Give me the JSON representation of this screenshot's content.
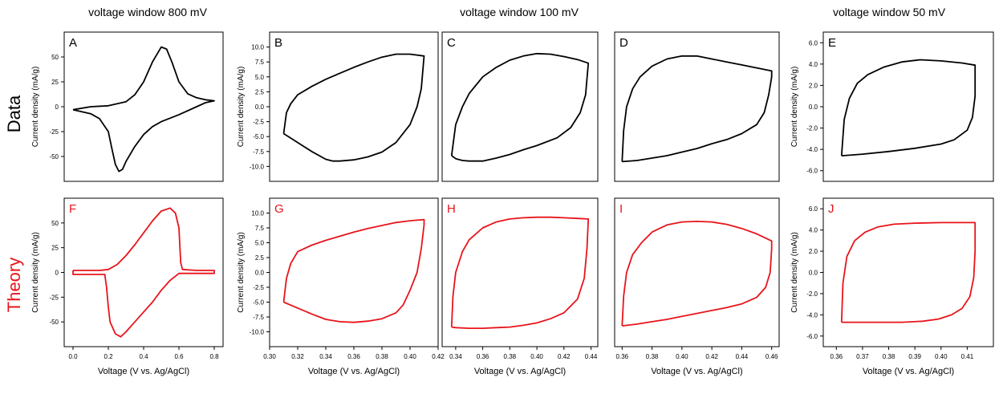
{
  "headers": {
    "window_800": "voltage window 800 mV",
    "window_100": "voltage window 100 mV",
    "window_50": "voltage window 50 mV"
  },
  "row_labels": {
    "data": "Data",
    "theory": "Theory"
  },
  "colors": {
    "data": "#000000",
    "theory": "#e8141a"
  },
  "axis_text": {
    "ylabel": "Current density (mA/g)",
    "xlabel": "Voltage (V vs. Ag/AgCl)"
  },
  "chart_data": [
    {
      "panel": "A",
      "row": "data",
      "type": "line",
      "xlim": [
        -0.05,
        0.85
      ],
      "ylim": [
        -75,
        75
      ],
      "xticks": [],
      "xticklabels": [],
      "yticks": [
        50,
        25,
        0,
        -25,
        -50
      ],
      "yticklabels": [
        "50",
        "25",
        "0",
        "-25",
        "-50"
      ],
      "ylabel": "Current density (mA/g)",
      "xlabel": "",
      "series": [
        {
          "x": [
            0.0,
            0.1,
            0.2,
            0.3,
            0.35,
            0.4,
            0.45,
            0.5,
            0.53,
            0.56,
            0.6,
            0.65,
            0.7,
            0.75,
            0.8,
            0.75,
            0.7,
            0.6,
            0.5,
            0.45,
            0.4,
            0.35,
            0.3,
            0.28,
            0.26,
            0.24,
            0.22,
            0.2,
            0.15,
            0.1,
            0.0
          ],
          "y": [
            -3,
            0,
            1,
            5,
            12,
            25,
            45,
            60,
            58,
            45,
            25,
            13,
            9,
            7,
            6,
            4,
            0,
            -8,
            -15,
            -20,
            -28,
            -40,
            -55,
            -63,
            -65,
            -58,
            -42,
            -25,
            -12,
            -7,
            -3
          ]
        }
      ]
    },
    {
      "panel": "B",
      "row": "data",
      "type": "line",
      "xlim": [
        0.3,
        0.42
      ],
      "ylim": [
        -12.5,
        12.5
      ],
      "xticks": [],
      "xticklabels": [],
      "yticks": [
        10,
        7.5,
        5,
        2.5,
        0,
        -2.5,
        -5,
        -7.5,
        -10
      ],
      "yticklabels": [
        "10.0",
        "7.5",
        "5.0",
        "2.5",
        "0.0",
        "-2.5",
        "-5.0",
        "-7.5",
        "-10.0"
      ],
      "ylabel": "Current density (mA/g)",
      "xlabel": "",
      "series": [
        {
          "x": [
            0.31,
            0.312,
            0.315,
            0.32,
            0.33,
            0.34,
            0.35,
            0.36,
            0.37,
            0.38,
            0.39,
            0.4,
            0.41,
            0.408,
            0.405,
            0.4,
            0.39,
            0.38,
            0.37,
            0.36,
            0.35,
            0.345,
            0.34,
            0.33,
            0.32,
            0.31
          ],
          "y": [
            -4.5,
            -1,
            0.5,
            2.0,
            3.4,
            4.6,
            5.6,
            6.6,
            7.5,
            8.3,
            8.8,
            8.8,
            8.5,
            3,
            0,
            -3,
            -6,
            -7.6,
            -8.4,
            -8.9,
            -9.1,
            -9.1,
            -8.8,
            -7.5,
            -6,
            -4.5
          ]
        }
      ]
    },
    {
      "panel": "C",
      "row": "data",
      "type": "line",
      "xlim": [
        0.33,
        0.445
      ],
      "ylim": [
        -12.5,
        12.5
      ],
      "xticks": [],
      "xticklabels": [],
      "yticks": [],
      "yticklabels": [],
      "ylabel": "",
      "xlabel": "",
      "series": [
        {
          "x": [
            0.337,
            0.34,
            0.345,
            0.35,
            0.36,
            0.37,
            0.38,
            0.39,
            0.4,
            0.41,
            0.42,
            0.43,
            0.438,
            0.436,
            0.432,
            0.425,
            0.415,
            0.4,
            0.39,
            0.38,
            0.37,
            0.36,
            0.35,
            0.345,
            0.34,
            0.337
          ],
          "y": [
            -8.2,
            -3,
            0,
            2.2,
            5,
            6.6,
            7.8,
            8.5,
            8.9,
            8.8,
            8.4,
            7.9,
            7.3,
            2,
            -1,
            -3.5,
            -5.2,
            -6.5,
            -7.2,
            -8.0,
            -8.6,
            -9.1,
            -9.1,
            -9.0,
            -8.7,
            -8.2
          ]
        }
      ]
    },
    {
      "panel": "D",
      "row": "data",
      "type": "line",
      "xlim": [
        0.355,
        0.465
      ],
      "ylim": [
        -12.5,
        12.5
      ],
      "xticks": [],
      "xticklabels": [],
      "yticks": [],
      "yticklabels": [],
      "ylabel": "",
      "xlabel": "",
      "series": [
        {
          "x": [
            0.36,
            0.361,
            0.363,
            0.367,
            0.372,
            0.38,
            0.39,
            0.4,
            0.41,
            0.42,
            0.43,
            0.44,
            0.45,
            0.46,
            0.46,
            0.458,
            0.455,
            0.45,
            0.44,
            0.43,
            0.42,
            0.41,
            0.4,
            0.39,
            0.38,
            0.37,
            0.36
          ],
          "y": [
            -9.2,
            -4,
            0,
            3,
            5,
            6.8,
            8.0,
            8.5,
            8.5,
            8.0,
            7.5,
            7.0,
            6.5,
            6.0,
            5,
            2,
            -1,
            -3,
            -4.5,
            -5.5,
            -6.2,
            -7.0,
            -7.6,
            -8.2,
            -8.6,
            -9.0,
            -9.2
          ]
        }
      ]
    },
    {
      "panel": "E",
      "row": "data",
      "type": "line",
      "xlim": [
        0.355,
        0.42
      ],
      "ylim": [
        -7,
        7
      ],
      "xticks": [],
      "xticklabels": [],
      "yticks": [
        6,
        4,
        2,
        0,
        -2,
        -4,
        -6
      ],
      "yticklabels": [
        "6.0",
        "4.0",
        "2.0",
        "0.0",
        "-2.0",
        "-4.0",
        "-6.0"
      ],
      "ylabel": "Current density (mA/g)",
      "xlabel": "",
      "series": [
        {
          "x": [
            0.362,
            0.363,
            0.365,
            0.368,
            0.372,
            0.378,
            0.385,
            0.392,
            0.4,
            0.408,
            0.413,
            0.413,
            0.412,
            0.41,
            0.405,
            0.4,
            0.39,
            0.38,
            0.37,
            0.362
          ],
          "y": [
            -4.6,
            -1.2,
            0.8,
            2.2,
            3.0,
            3.7,
            4.2,
            4.4,
            4.3,
            4.1,
            3.9,
            1,
            -1.0,
            -2.2,
            -3.1,
            -3.5,
            -3.9,
            -4.2,
            -4.45,
            -4.6
          ]
        }
      ]
    },
    {
      "panel": "F",
      "row": "theory",
      "type": "line",
      "xlim": [
        -0.05,
        0.85
      ],
      "ylim": [
        -75,
        75
      ],
      "xticks": [
        0.0,
        0.2,
        0.4,
        0.6,
        0.8
      ],
      "xticklabels": [
        "0.0",
        "0.2",
        "0.4",
        "0.6",
        "0.8"
      ],
      "yticks": [
        50,
        25,
        0,
        -25,
        -50
      ],
      "yticklabels": [
        "50",
        "25",
        "0",
        "-25",
        "-50"
      ],
      "ylabel": "Current density (mA/g)",
      "xlabel": "Voltage (V vs. Ag/AgCl)",
      "series": [
        {
          "x": [
            0.0,
            0.15,
            0.2,
            0.25,
            0.3,
            0.35,
            0.4,
            0.45,
            0.5,
            0.55,
            0.58,
            0.6,
            0.61,
            0.62,
            0.7,
            0.8,
            0.8,
            0.7,
            0.62,
            0.6,
            0.55,
            0.5,
            0.45,
            0.4,
            0.35,
            0.3,
            0.27,
            0.24,
            0.21,
            0.2,
            0.19,
            0.18,
            0.1,
            0.0,
            0.0
          ],
          "y": [
            2,
            2,
            3,
            8,
            17,
            28,
            40,
            52,
            62,
            65,
            60,
            45,
            10,
            3,
            2,
            2,
            -1,
            -1,
            -1,
            -1,
            -8,
            -18,
            -30,
            -40,
            -50,
            -60,
            -65,
            -62,
            -50,
            -35,
            -15,
            -2,
            -2,
            -2,
            2
          ]
        }
      ]
    },
    {
      "panel": "G",
      "row": "theory",
      "type": "line",
      "xlim": [
        0.3,
        0.42
      ],
      "ylim": [
        -12.5,
        12.5
      ],
      "xticks": [
        0.3,
        0.32,
        0.34,
        0.36,
        0.38,
        0.4,
        0.42
      ],
      "xticklabels": [
        "0.30",
        "0.32",
        "0.34",
        "0.36",
        "0.38",
        "0.40",
        "0.42"
      ],
      "yticks": [
        10,
        7.5,
        5,
        2.5,
        0,
        -2.5,
        -5,
        -7.5,
        -10
      ],
      "yticklabels": [
        "10.0",
        "7.5",
        "5.0",
        "2.5",
        "0.0",
        "-2.5",
        "-5.0",
        "-7.5",
        "-10.0"
      ],
      "ylabel": "Current density (mA/g)",
      "xlabel": "Voltage (V vs. Ag/AgCl)",
      "series": [
        {
          "x": [
            0.31,
            0.312,
            0.315,
            0.32,
            0.33,
            0.34,
            0.35,
            0.36,
            0.37,
            0.38,
            0.39,
            0.4,
            0.41,
            0.41,
            0.408,
            0.405,
            0.4,
            0.395,
            0.39,
            0.38,
            0.37,
            0.36,
            0.35,
            0.34,
            0.33,
            0.32,
            0.31
          ],
          "y": [
            -5.0,
            -1,
            1.5,
            3.5,
            4.6,
            5.4,
            6.1,
            6.8,
            7.4,
            7.9,
            8.4,
            8.7,
            8.9,
            8.0,
            4,
            0,
            -3,
            -5.5,
            -6.8,
            -7.8,
            -8.2,
            -8.4,
            -8.3,
            -7.9,
            -7.0,
            -6.0,
            -5.0
          ]
        }
      ]
    },
    {
      "panel": "H",
      "row": "theory",
      "type": "line",
      "xlim": [
        0.33,
        0.445
      ],
      "ylim": [
        -12.5,
        12.5
      ],
      "xticks": [
        0.34,
        0.36,
        0.38,
        0.4,
        0.42,
        0.44
      ],
      "xticklabels": [
        "0.34",
        "0.36",
        "0.38",
        "0.40",
        "0.42",
        "0.44"
      ],
      "yticks": [],
      "yticklabels": [],
      "ylabel": "",
      "xlabel": "Voltage (V vs. Ag/AgCl)",
      "series": [
        {
          "x": [
            0.337,
            0.338,
            0.34,
            0.345,
            0.35,
            0.36,
            0.37,
            0.38,
            0.39,
            0.4,
            0.41,
            0.42,
            0.43,
            0.438,
            0.437,
            0.435,
            0.43,
            0.42,
            0.41,
            0.4,
            0.39,
            0.38,
            0.37,
            0.36,
            0.35,
            0.34,
            0.337
          ],
          "y": [
            -9.2,
            -4,
            0,
            3.5,
            5.5,
            7.5,
            8.5,
            9.0,
            9.2,
            9.3,
            9.3,
            9.2,
            9.1,
            9.0,
            4,
            -1,
            -4.5,
            -6.8,
            -7.8,
            -8.5,
            -8.9,
            -9.2,
            -9.3,
            -9.4,
            -9.4,
            -9.3,
            -9.2
          ]
        }
      ]
    },
    {
      "panel": "I",
      "row": "theory",
      "type": "line",
      "xlim": [
        0.355,
        0.465
      ],
      "ylim": [
        -12.5,
        12.5
      ],
      "xticks": [
        0.36,
        0.38,
        0.4,
        0.42,
        0.44,
        0.46
      ],
      "xticklabels": [
        "0.36",
        "0.38",
        "0.40",
        "0.42",
        "0.44",
        "0.46"
      ],
      "yticks": [],
      "yticklabels": [],
      "ylabel": "",
      "xlabel": "Voltage (V vs. Ag/AgCl)",
      "series": [
        {
          "x": [
            0.36,
            0.361,
            0.363,
            0.367,
            0.373,
            0.38,
            0.39,
            0.4,
            0.41,
            0.42,
            0.43,
            0.44,
            0.45,
            0.46,
            0.46,
            0.459,
            0.456,
            0.45,
            0.44,
            0.43,
            0.42,
            0.41,
            0.4,
            0.39,
            0.38,
            0.37,
            0.36
          ],
          "y": [
            -9.0,
            -4,
            0,
            3,
            5,
            6.8,
            8.0,
            8.5,
            8.6,
            8.5,
            8.1,
            7.4,
            6.5,
            5.3,
            4,
            0,
            -2.5,
            -4.2,
            -5.3,
            -5.9,
            -6.4,
            -6.9,
            -7.4,
            -7.9,
            -8.3,
            -8.7,
            -9.0
          ]
        }
      ]
    },
    {
      "panel": "J",
      "row": "theory",
      "type": "line",
      "xlim": [
        0.355,
        0.42
      ],
      "ylim": [
        -7,
        7
      ],
      "xticks": [
        0.36,
        0.37,
        0.38,
        0.39,
        0.4,
        0.41
      ],
      "xticklabels": [
        "0.36",
        "0.37",
        "0.38",
        "0.39",
        "0.40",
        "0.41"
      ],
      "yticks": [
        6,
        4,
        2,
        0,
        -2,
        -4,
        -6
      ],
      "yticklabels": [
        "6.0",
        "4.0",
        "2.0",
        "0.0",
        "-2.0",
        "-4.0",
        "-6.0"
      ],
      "ylabel": "Current density (mA/g)",
      "xlabel": "Voltage (V vs. Ag/AgCl)",
      "series": [
        {
          "x": [
            0.362,
            0.3625,
            0.364,
            0.367,
            0.371,
            0.376,
            0.382,
            0.39,
            0.4,
            0.408,
            0.413,
            0.413,
            0.4125,
            0.411,
            0.408,
            0.404,
            0.399,
            0.393,
            0.385,
            0.375,
            0.368,
            0.362
          ],
          "y": [
            -4.7,
            -1,
            1.5,
            3.0,
            3.8,
            4.3,
            4.55,
            4.65,
            4.7,
            4.7,
            4.7,
            2,
            -0.5,
            -2.3,
            -3.4,
            -4.0,
            -4.4,
            -4.6,
            -4.7,
            -4.7,
            -4.7,
            -4.7
          ]
        }
      ]
    }
  ]
}
